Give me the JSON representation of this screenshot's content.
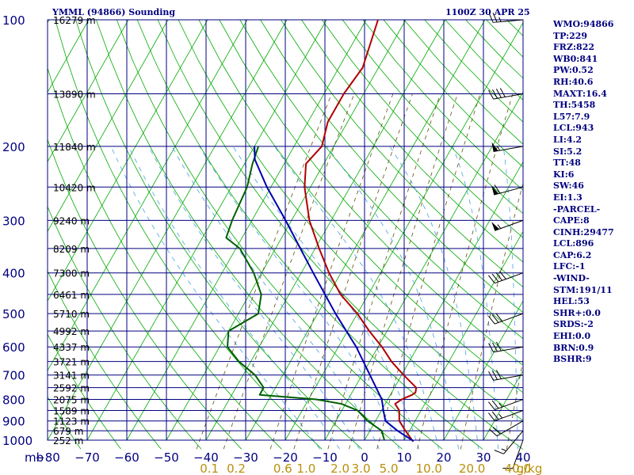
{
  "header": {
    "title": "YMML (94866) Sounding",
    "time": "1100Z 30 APR 25"
  },
  "indices": [
    "WMO:94866",
    "TP:229",
    "FRZ:822",
    "WB0:841",
    "PW:0.52",
    "RH:40.6",
    "MAXT:16.4",
    "TH:5458",
    "L57:7.9",
    "LCL:943",
    "LI:4.2",
    "SI:5.2",
    "TT:48",
    "KI:6",
    "SW:46",
    "EI:1.3",
    "-PARCEL-",
    "CAPE:8",
    "CINH:29477",
    "LCL:896",
    "CAP:6.2",
    "LFC:-1",
    "-WIND-",
    "STM:191/11",
    "HEL:53",
    "SHR+:0.0",
    "SRDS:-2",
    "EHI:0.0",
    "BRN:0.9",
    "BSHR:9"
  ],
  "colors": {
    "grid": "#000080",
    "isotherm": "#00aa00",
    "dry_adiabat": "#00aa00",
    "moist_adiabat": "#4aa0e0",
    "mixing_ratio": "#605010",
    "temperature": "#b00000",
    "dewpoint": "#006000",
    "parcel": "#0000b0",
    "mixing_ratio_label": "#b8900a",
    "wind_barb": "#000000"
  },
  "chart_data": {
    "type": "line",
    "title": "YMML (94866) Sounding",
    "x_axis": {
      "quantity": "temperature (°C)",
      "range": [
        -80,
        40
      ],
      "ticks": [
        -80,
        -70,
        -60,
        -50,
        -40,
        -30,
        -20,
        -10,
        0,
        10,
        20,
        30,
        40
      ],
      "tick_labels": [
        "−80",
        "−70",
        "−60",
        "−50",
        "−40",
        "−30",
        "−20",
        "−10",
        "0",
        "10",
        "20",
        "30",
        "40"
      ]
    },
    "y_axis": {
      "quantity": "pressure (mb)",
      "scale": "log",
      "range": [
        1000,
        100
      ],
      "unit_label": "mb",
      "ticks": [
        100,
        200,
        300,
        400,
        500,
        600,
        700,
        800,
        900,
        1000
      ]
    },
    "height_labels": [
      {
        "p": 100,
        "label": "16279 m"
      },
      {
        "p": 150,
        "label": "13890 m"
      },
      {
        "p": 200,
        "label": "11840 m"
      },
      {
        "p": 250,
        "label": "10420 m"
      },
      {
        "p": 300,
        "label": "9240 m"
      },
      {
        "p": 350,
        "label": "8209 m"
      },
      {
        "p": 400,
        "label": "7300 m"
      },
      {
        "p": 450,
        "label": "6461 m"
      },
      {
        "p": 500,
        "label": "5710 m"
      },
      {
        "p": 550,
        "label": "4992 m"
      },
      {
        "p": 600,
        "label": "4337 m"
      },
      {
        "p": 650,
        "label": "3721 m"
      },
      {
        "p": 700,
        "label": "3141 m"
      },
      {
        "p": 750,
        "label": "2592 m"
      },
      {
        "p": 800,
        "label": "2075 m"
      },
      {
        "p": 850,
        "label": "1589 m"
      },
      {
        "p": 900,
        "label": "1123 m"
      },
      {
        "p": 950,
        "label": "679 m"
      },
      {
        "p": 1000,
        "label": "252 m"
      }
    ],
    "mixing_ratio_labels": [
      "0.1",
      "0.2",
      "0.6",
      "1.0",
      "2.0",
      "3.0",
      "5.0",
      "10.0",
      "20.0",
      "40.0",
      "g/kg"
    ],
    "mixing_ratio_values": [
      0.1,
      0.2,
      0.6,
      1.0,
      2.0,
      3.0,
      5.0,
      10.0,
      20.0,
      40.0
    ],
    "grid": true,
    "series": [
      {
        "role": "temperature",
        "points": [
          [
            1007,
            12.5
          ],
          [
            1000,
            12
          ],
          [
            950,
            9
          ],
          [
            900,
            6
          ],
          [
            850,
            4.5
          ],
          [
            820,
            2.5
          ],
          [
            800,
            3.5
          ],
          [
            780,
            5.5
          ],
          [
            770,
            6
          ],
          [
            750,
            5.5
          ],
          [
            700,
            0.5
          ],
          [
            650,
            -4.5
          ],
          [
            600,
            -9
          ],
          [
            550,
            -14.5
          ],
          [
            500,
            -20
          ],
          [
            450,
            -27
          ],
          [
            400,
            -33
          ],
          [
            350,
            -39
          ],
          [
            300,
            -45.5
          ],
          [
            250,
            -51.5
          ],
          [
            220,
            -54.5
          ],
          [
            200,
            -53
          ],
          [
            175,
            -55
          ],
          [
            150,
            -55
          ],
          [
            130,
            -54
          ],
          [
            100,
            -57
          ]
        ]
      },
      {
        "role": "dewpoint",
        "points": [
          [
            1000,
            5
          ],
          [
            950,
            3
          ],
          [
            900,
            -2
          ],
          [
            850,
            -6
          ],
          [
            820,
            -11
          ],
          [
            800,
            -18
          ],
          [
            780,
            -33
          ],
          [
            770,
            -33
          ],
          [
            750,
            -33
          ],
          [
            700,
            -37
          ],
          [
            650,
            -43
          ],
          [
            600,
            -48
          ],
          [
            550,
            -50
          ],
          [
            500,
            -45
          ],
          [
            450,
            -47
          ],
          [
            400,
            -52
          ],
          [
            350,
            -59
          ],
          [
            330,
            -64
          ],
          [
            300,
            -65
          ],
          [
            250,
            -66
          ],
          [
            220,
            -68
          ],
          [
            200,
            -69
          ]
        ]
      },
      {
        "role": "parcel",
        "points": [
          [
            1007,
            12.5
          ],
          [
            1000,
            12
          ],
          [
            950,
            7
          ],
          [
            900,
            2.5
          ],
          [
            850,
            0.5
          ],
          [
            800,
            -1.5
          ],
          [
            700,
            -8
          ],
          [
            600,
            -15.5
          ],
          [
            500,
            -25.5
          ],
          [
            400,
            -37
          ],
          [
            300,
            -51.5
          ],
          [
            250,
            -61
          ],
          [
            215,
            -68
          ],
          [
            200,
            -70
          ]
        ]
      }
    ],
    "wind_profile_dir_spd": [
      [
        1000,
        200,
        10
      ],
      [
        950,
        220,
        15
      ],
      [
        900,
        240,
        20
      ],
      [
        850,
        250,
        25
      ],
      [
        800,
        250,
        25
      ],
      [
        700,
        260,
        30
      ],
      [
        600,
        260,
        30
      ],
      [
        500,
        250,
        30
      ],
      [
        400,
        250,
        40
      ],
      [
        300,
        250,
        55
      ],
      [
        250,
        255,
        60
      ],
      [
        200,
        260,
        55
      ],
      [
        150,
        260,
        40
      ],
      [
        100,
        265,
        25
      ]
    ]
  }
}
